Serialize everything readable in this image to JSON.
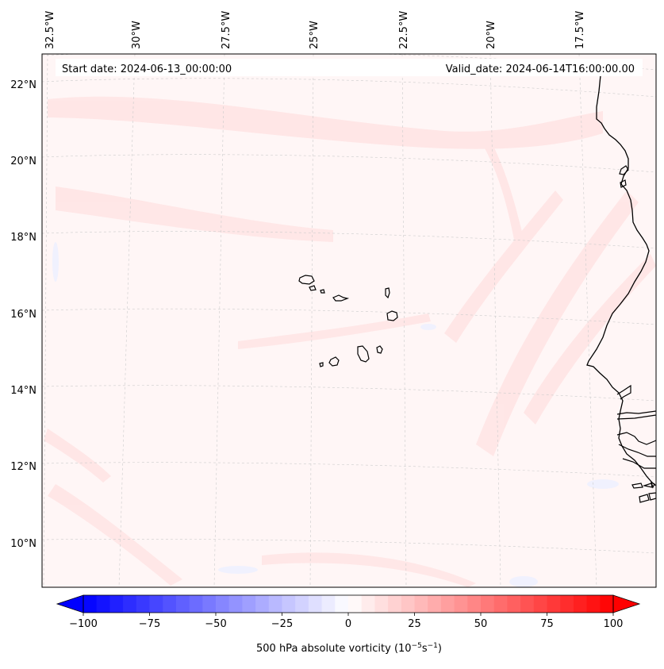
{
  "map": {
    "start_date_label": "Start date: 2024-06-13_00:00:00",
    "valid_date_label": "Valid_date: 2024-06-14T16:00:00.00",
    "lon_labels": [
      "32.5°W",
      "30°W",
      "27.5°W",
      "25°W",
      "22.5°W",
      "20°W",
      "17.5°W"
    ],
    "lat_labels": [
      "22°N",
      "20°N",
      "18°N",
      "16°N",
      "14°N",
      "12°N",
      "10°N"
    ]
  },
  "colorbar": {
    "ticks": [
      "−100",
      "−75",
      "−50",
      "−25",
      "0",
      "25",
      "50",
      "75",
      "100"
    ],
    "label": "500 hPa absolute vorticity (10",
    "label_exp1": "−5",
    "label_mid": "s",
    "label_exp2": "−1",
    "label_end": ")",
    "min": -100,
    "max": 100,
    "step": 5,
    "color_min": "#0000ff",
    "color_mid": "#ffffff",
    "color_max": "#ff0000"
  },
  "colors": {
    "coast": "#000000",
    "field_base": "#fff6f6",
    "field_pos": "#ffe3e3",
    "field_neg": "#eef2ff",
    "grid": "#cccccc"
  }
}
